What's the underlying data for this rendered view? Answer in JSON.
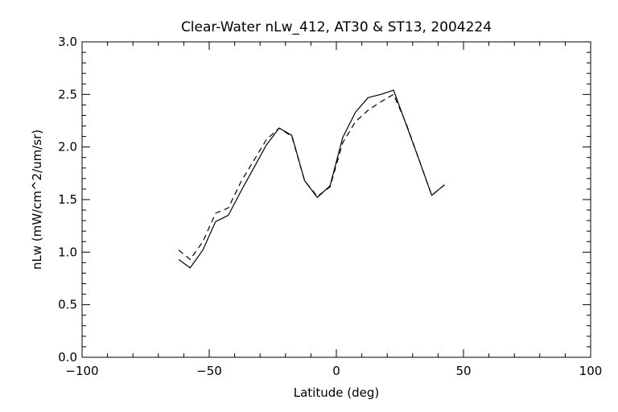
{
  "chart_data": {
    "type": "line",
    "title": "Clear-Water nLw_412, AT30 & ST13, 2004224",
    "xlabel": "Latitude (deg)",
    "ylabel": "nLw (mW/cm^2/um/sr)",
    "xlim": [
      -100,
      100
    ],
    "ylim": [
      0.0,
      3.0
    ],
    "x_ticks": [
      -100,
      -50,
      0,
      50,
      100
    ],
    "x_tick_labels": [
      "−100",
      "−50",
      "0",
      "50",
      "100"
    ],
    "y_ticks": [
      0.0,
      0.5,
      1.0,
      1.5,
      2.0,
      2.5,
      3.0
    ],
    "y_tick_labels": [
      "0.0",
      "0.5",
      "1.0",
      "1.5",
      "2.0",
      "2.5",
      "3.0"
    ],
    "grid": false,
    "series": [
      {
        "style": "solid",
        "color": "#000000",
        "x": [
          -62,
          -57.5,
          -52.5,
          -47.5,
          -42.5,
          -37.5,
          -32.5,
          -27.5,
          -22.5,
          -17.5,
          -12.5,
          -7.5,
          -2.5,
          2.5,
          7.5,
          12.5,
          17.5,
          22.5,
          27.5,
          32.5,
          37.5,
          42.5
        ],
        "y": [
          0.93,
          0.85,
          1.02,
          1.29,
          1.35,
          1.58,
          1.8,
          2.02,
          2.18,
          2.11,
          1.68,
          1.52,
          1.63,
          2.09,
          2.33,
          2.47,
          2.5,
          2.54,
          2.21,
          1.88,
          1.54,
          1.64
        ]
      },
      {
        "style": "dashed",
        "color": "#000000",
        "x": [
          -62,
          -57.5,
          -52.5,
          -47.5,
          -42.5,
          -37.5,
          -32.5,
          -27.5,
          -22.5,
          -17.5,
          -12.5,
          -7.5,
          -2.5,
          2.5,
          7.5,
          12.5,
          17.5,
          22.5,
          27.5,
          32.5,
          37.5,
          42.5
        ],
        "y": [
          1.02,
          0.93,
          1.1,
          1.37,
          1.42,
          1.67,
          1.87,
          2.07,
          2.18,
          2.1,
          1.68,
          1.53,
          1.62,
          2.04,
          2.24,
          2.35,
          2.43,
          2.5,
          2.22,
          1.88,
          1.54,
          1.64
        ]
      }
    ]
  }
}
